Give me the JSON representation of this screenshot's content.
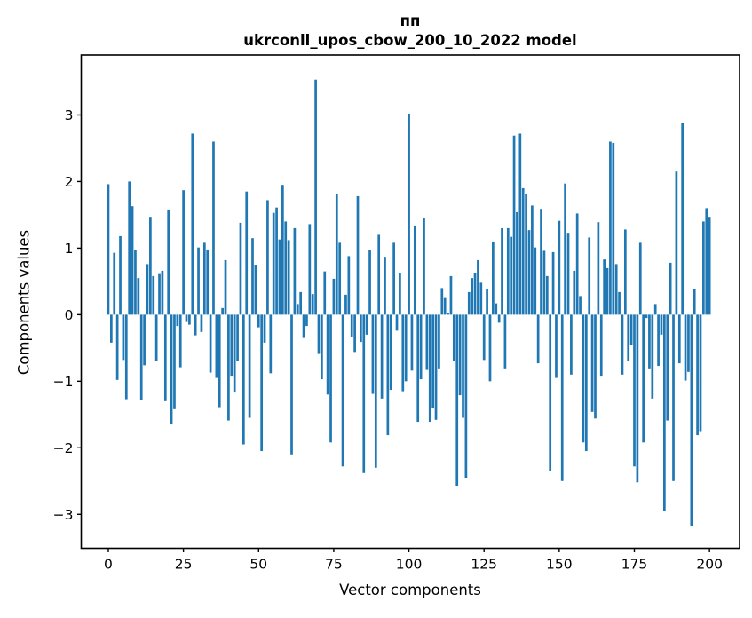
{
  "figure": {
    "title_line1": "пп",
    "title_line2": "ukrconll_upos_cbow_200_10_2022 model",
    "background_color": "#ffffff",
    "text_color": "#000000"
  },
  "chart_data": {
    "type": "bar",
    "title": "пп\nukrconll_upos_cbow_200_10_2022 model",
    "xlabel": "Vector components",
    "ylabel": "Components values",
    "bar_color": "#1f77b4",
    "grid": false,
    "legend": false,
    "x_ticks": [
      0,
      25,
      50,
      75,
      100,
      125,
      150,
      175,
      200
    ],
    "y_ticks": [
      3,
      2,
      1,
      0,
      -1,
      -2,
      -3
    ],
    "xlim": [
      -9,
      210
    ],
    "ylim": [
      -3.51,
      3.9
    ],
    "x_description": "vector component index, sequential 0..200",
    "bar_width_units": 0.8,
    "values": [
      1.96,
      -0.42,
      0.93,
      -0.98,
      1.18,
      -0.68,
      -1.27,
      2.0,
      1.63,
      0.97,
      0.55,
      -1.28,
      -0.76,
      0.76,
      1.47,
      0.58,
      -0.7,
      0.61,
      0.66,
      -1.3,
      1.58,
      -1.65,
      -1.42,
      -0.17,
      -0.79,
      1.87,
      -0.11,
      -0.15,
      2.72,
      -0.31,
      1.01,
      -0.26,
      1.08,
      0.98,
      -0.87,
      2.6,
      -0.95,
      -1.39,
      0.1,
      0.82,
      -1.59,
      -0.93,
      -1.17,
      -0.7,
      1.38,
      -1.95,
      1.85,
      -1.55,
      1.15,
      0.75,
      -0.19,
      -2.05,
      -0.42,
      1.72,
      -0.88,
      1.53,
      1.61,
      1.13,
      1.95,
      1.4,
      1.12,
      -2.1,
      1.3,
      0.16,
      0.34,
      -0.35,
      -0.17,
      1.36,
      0.31,
      3.53,
      -0.59,
      -0.97,
      0.65,
      -1.2,
      -1.92,
      0.54,
      1.81,
      1.08,
      -2.28,
      0.3,
      0.88,
      -0.33,
      -0.56,
      1.78,
      -0.41,
      -2.38,
      -0.3,
      0.97,
      -1.19,
      -2.3,
      1.2,
      -1.26,
      0.87,
      -1.81,
      -1.13,
      1.08,
      -0.24,
      0.62,
      -1.15,
      -1.0,
      3.02,
      -0.84,
      1.34,
      -1.61,
      -0.97,
      1.45,
      -0.83,
      -1.61,
      -1.41,
      -1.58,
      -0.82,
      0.4,
      0.25,
      0.03,
      0.58,
      -0.7,
      -2.57,
      -1.21,
      -1.55,
      -2.45,
      0.34,
      0.55,
      0.62,
      0.82,
      0.48,
      -0.68,
      0.38,
      -1.0,
      1.1,
      0.17,
      -0.12,
      1.3,
      -0.82,
      1.3,
      1.17,
      2.69,
      1.54,
      2.72,
      1.9,
      1.82,
      1.27,
      1.64,
      1.01,
      -0.73,
      1.59,
      0.96,
      0.58,
      -2.35,
      0.94,
      -0.95,
      1.41,
      -2.5,
      1.97,
      1.23,
      -0.9,
      0.66,
      1.52,
      0.28,
      -1.92,
      -2.05,
      1.16,
      -1.46,
      -1.56,
      1.39,
      -0.93,
      0.83,
      0.7,
      2.6,
      2.58,
      0.76,
      0.34,
      -0.9,
      1.28,
      -0.7,
      -0.45,
      -2.28,
      -2.52,
      1.08,
      -1.92,
      -0.05,
      -0.82,
      -1.26,
      0.16,
      -0.77,
      -0.3,
      -2.95,
      -1.59,
      0.78,
      -2.5,
      2.15,
      -0.73,
      2.88,
      -0.99,
      -0.86,
      -3.17,
      0.38,
      -1.81,
      -1.75,
      1.4,
      1.6,
      1.47
    ]
  }
}
